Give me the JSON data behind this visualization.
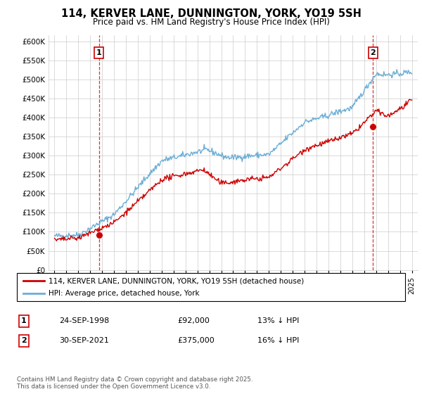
{
  "title": "114, KERVER LANE, DUNNINGTON, YORK, YO19 5SH",
  "subtitle": "Price paid vs. HM Land Registry's House Price Index (HPI)",
  "ylabel_ticks": [
    "£0",
    "£50K",
    "£100K",
    "£150K",
    "£200K",
    "£250K",
    "£300K",
    "£350K",
    "£400K",
    "£450K",
    "£500K",
    "£550K",
    "£600K"
  ],
  "ytick_vals": [
    0,
    50000,
    100000,
    150000,
    200000,
    250000,
    300000,
    350000,
    400000,
    450000,
    500000,
    550000,
    600000
  ],
  "xlim": [
    1994.5,
    2025.5
  ],
  "ylim": [
    0,
    615000
  ],
  "legend_entries": [
    "114, KERVER LANE, DUNNINGTON, YORK, YO19 5SH (detached house)",
    "HPI: Average price, detached house, York"
  ],
  "legend_colors": [
    "#cc0000",
    "#6baed6"
  ],
  "sale_points": [
    {
      "year": 1998.73,
      "price": 92000,
      "label": "1"
    },
    {
      "year": 2021.75,
      "price": 375000,
      "label": "2"
    }
  ],
  "annotation_1": {
    "label": "1",
    "date": "24-SEP-1998",
    "price": "£92,000",
    "note": "13% ↓ HPI"
  },
  "annotation_2": {
    "label": "2",
    "date": "30-SEP-2021",
    "price": "£375,000",
    "note": "16% ↓ HPI"
  },
  "footer": "Contains HM Land Registry data © Crown copyright and database right 2025.\nThis data is licensed under the Open Government Licence v3.0.",
  "bg_color": "#ffffff",
  "grid_color": "#cccccc",
  "line_color_hpi": "#6baed6",
  "line_color_sale": "#cc0000",
  "vline_color": "#cc0000"
}
